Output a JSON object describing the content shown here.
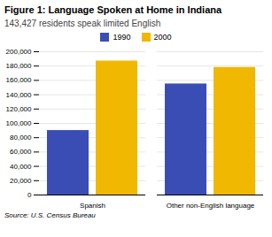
{
  "chart_data": {
    "type": "bar",
    "title": "Figure 1: Language Spoken at Home in Indiana",
    "subtitle": "143,427 residents speak limited English",
    "categories": [
      "Spanish",
      "Other non-English language"
    ],
    "series": [
      {
        "name": "1990",
        "color": "#3a4db5",
        "values": [
          90000,
          155000
        ]
      },
      {
        "name": "2000",
        "color": "#f0b800",
        "values": [
          187000,
          178000
        ]
      }
    ],
    "ylim": [
      0,
      200000
    ],
    "yticks": [
      0,
      {
        "value": 20000,
        "label": "20,000"
      },
      {
        "value": 40000,
        "label": "40,000"
      },
      {
        "value": 60000,
        "label": "60,000"
      },
      {
        "value": 80000,
        "label": "80,000"
      },
      {
        "value": 100000,
        "label": "100,000"
      },
      {
        "value": 120000,
        "label": "120,000"
      },
      {
        "value": 140000,
        "label": "140,000"
      },
      {
        "value": 160000,
        "label": "160,000"
      },
      {
        "value": 180000,
        "label": "180,000"
      },
      {
        "value": 200000,
        "label": "200,000"
      }
    ],
    "grid": true,
    "legend": "top",
    "source": "Source: U.S. Census Bureau"
  }
}
